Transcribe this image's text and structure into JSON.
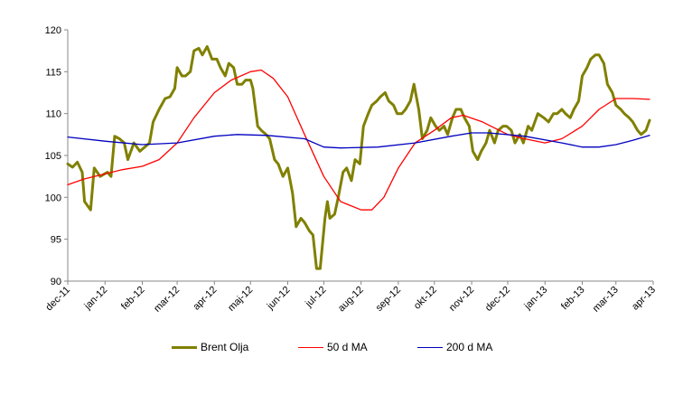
{
  "chart_data": {
    "type": "line",
    "title": "",
    "xlabel": "",
    "ylabel": "",
    "ylim": [
      90,
      120
    ],
    "yticks": [
      90,
      95,
      100,
      105,
      110,
      115,
      120
    ],
    "xlim": [
      "2011-12-01",
      "2013-04-01"
    ],
    "grid": false,
    "legend_position": "bottom",
    "x_tick_labels": [
      "dec-11",
      "jan-12",
      "feb-12",
      "mar-12",
      "apr-12",
      "maj-12",
      "jun-12",
      "jul-12",
      "aug-12",
      "sep-12",
      "okt-12",
      "nov-12",
      "dec-12",
      "jan-13",
      "feb-13",
      "mar-13",
      "apr-13"
    ],
    "series": [
      {
        "name": "Brent Olja",
        "color": "#808000",
        "points": [
          [
            "2011-12-01",
            104.0
          ],
          [
            "2011-12-05",
            103.6
          ],
          [
            "2011-12-09",
            104.2
          ],
          [
            "2011-12-13",
            103.0
          ],
          [
            "2011-12-15",
            99.5
          ],
          [
            "2011-12-20",
            98.5
          ],
          [
            "2011-12-23",
            103.5
          ],
          [
            "2011-12-28",
            102.5
          ],
          [
            "2012-01-03",
            103.0
          ],
          [
            "2012-01-06",
            102.5
          ],
          [
            "2012-01-09",
            107.3
          ],
          [
            "2012-01-13",
            107.0
          ],
          [
            "2012-01-17",
            106.5
          ],
          [
            "2012-01-20",
            104.5
          ],
          [
            "2012-01-25",
            106.5
          ],
          [
            "2012-01-30",
            105.5
          ],
          [
            "2012-02-03",
            106.0
          ],
          [
            "2012-02-07",
            106.5
          ],
          [
            "2012-02-10",
            109.0
          ],
          [
            "2012-02-15",
            110.5
          ],
          [
            "2012-02-20",
            111.8
          ],
          [
            "2012-02-24",
            112.0
          ],
          [
            "2012-02-28",
            113.0
          ],
          [
            "2012-03-01",
            115.5
          ],
          [
            "2012-03-05",
            114.5
          ],
          [
            "2012-03-08",
            114.5
          ],
          [
            "2012-03-12",
            115.0
          ],
          [
            "2012-03-15",
            117.5
          ],
          [
            "2012-03-19",
            117.8
          ],
          [
            "2012-03-22",
            117.0
          ],
          [
            "2012-03-26",
            118.0
          ],
          [
            "2012-03-30",
            116.5
          ],
          [
            "2012-04-03",
            116.5
          ],
          [
            "2012-04-06",
            115.5
          ],
          [
            "2012-04-10",
            114.5
          ],
          [
            "2012-04-13",
            116.0
          ],
          [
            "2012-04-17",
            115.5
          ],
          [
            "2012-04-20",
            113.5
          ],
          [
            "2012-04-24",
            113.5
          ],
          [
            "2012-04-27",
            114.0
          ],
          [
            "2012-05-01",
            114.0
          ],
          [
            "2012-05-03",
            113.0
          ],
          [
            "2012-05-07",
            108.5
          ],
          [
            "2012-05-10",
            108.0
          ],
          [
            "2012-05-14",
            107.5
          ],
          [
            "2012-05-17",
            107.0
          ],
          [
            "2012-05-21",
            104.5
          ],
          [
            "2012-05-24",
            104.0
          ],
          [
            "2012-05-28",
            102.5
          ],
          [
            "2012-06-01",
            103.5
          ],
          [
            "2012-06-05",
            100.5
          ],
          [
            "2012-06-08",
            96.5
          ],
          [
            "2012-06-12",
            97.5
          ],
          [
            "2012-06-15",
            97.0
          ],
          [
            "2012-06-19",
            96.0
          ],
          [
            "2012-06-22",
            95.5
          ],
          [
            "2012-06-25",
            91.5
          ],
          [
            "2012-06-28",
            91.5
          ],
          [
            "2012-07-02",
            97.5
          ],
          [
            "2012-07-04",
            99.5
          ],
          [
            "2012-07-06",
            97.5
          ],
          [
            "2012-07-10",
            98.0
          ],
          [
            "2012-07-13",
            100.0
          ],
          [
            "2012-07-17",
            103.0
          ],
          [
            "2012-07-20",
            103.5
          ],
          [
            "2012-07-24",
            102.0
          ],
          [
            "2012-07-27",
            104.5
          ],
          [
            "2012-07-31",
            104.0
          ],
          [
            "2012-08-03",
            108.5
          ],
          [
            "2012-08-07",
            110.0
          ],
          [
            "2012-08-10",
            111.0
          ],
          [
            "2012-08-14",
            111.5
          ],
          [
            "2012-08-17",
            112.0
          ],
          [
            "2012-08-21",
            112.5
          ],
          [
            "2012-08-24",
            111.5
          ],
          [
            "2012-08-28",
            111.0
          ],
          [
            "2012-08-31",
            110.0
          ],
          [
            "2012-09-04",
            110.0
          ],
          [
            "2012-09-07",
            110.5
          ],
          [
            "2012-09-11",
            111.5
          ],
          [
            "2012-09-14",
            113.5
          ],
          [
            "2012-09-18",
            110.5
          ],
          [
            "2012-09-21",
            107.0
          ],
          [
            "2012-09-25",
            108.0
          ],
          [
            "2012-09-28",
            109.5
          ],
          [
            "2012-10-02",
            108.5
          ],
          [
            "2012-10-05",
            108.0
          ],
          [
            "2012-10-09",
            108.5
          ],
          [
            "2012-10-12",
            107.5
          ],
          [
            "2012-10-16",
            109.5
          ],
          [
            "2012-10-19",
            110.5
          ],
          [
            "2012-10-23",
            110.5
          ],
          [
            "2012-10-26",
            109.5
          ],
          [
            "2012-10-30",
            108.5
          ],
          [
            "2012-11-02",
            105.5
          ],
          [
            "2012-11-06",
            104.5
          ],
          [
            "2012-11-09",
            105.5
          ],
          [
            "2012-11-13",
            106.5
          ],
          [
            "2012-11-16",
            108.0
          ],
          [
            "2012-11-20",
            106.5
          ],
          [
            "2012-11-23",
            108.0
          ],
          [
            "2012-11-27",
            108.5
          ],
          [
            "2012-11-30",
            108.5
          ],
          [
            "2012-12-04",
            108.0
          ],
          [
            "2012-12-07",
            106.5
          ],
          [
            "2012-12-11",
            107.5
          ],
          [
            "2012-12-14",
            106.5
          ],
          [
            "2012-12-18",
            108.5
          ],
          [
            "2012-12-21",
            108.0
          ],
          [
            "2012-12-26",
            110.0
          ],
          [
            "2012-12-31",
            109.5
          ],
          [
            "2013-01-04",
            109.0
          ],
          [
            "2013-01-08",
            110.0
          ],
          [
            "2013-01-11",
            110.0
          ],
          [
            "2013-01-15",
            110.5
          ],
          [
            "2013-01-18",
            110.0
          ],
          [
            "2013-01-22",
            109.5
          ],
          [
            "2013-01-25",
            110.5
          ],
          [
            "2013-01-29",
            111.5
          ],
          [
            "2013-02-01",
            114.5
          ],
          [
            "2013-02-05",
            115.5
          ],
          [
            "2013-02-08",
            116.5
          ],
          [
            "2013-02-12",
            117.0
          ],
          [
            "2013-02-15",
            117.0
          ],
          [
            "2013-02-19",
            116.0
          ],
          [
            "2013-02-22",
            113.5
          ],
          [
            "2013-02-26",
            112.5
          ],
          [
            "2013-03-01",
            111.0
          ],
          [
            "2013-03-05",
            110.5
          ],
          [
            "2013-03-08",
            110.0
          ],
          [
            "2013-03-12",
            109.5
          ],
          [
            "2013-03-15",
            109.0
          ],
          [
            "2013-03-19",
            108.0
          ],
          [
            "2013-03-22",
            107.5
          ],
          [
            "2013-03-26",
            108.0
          ],
          [
            "2013-03-29",
            109.2
          ]
        ]
      },
      {
        "name": "50 d MA",
        "color": "#ff0000",
        "points": [
          [
            "2011-12-01",
            101.5
          ],
          [
            "2011-12-15",
            102.2
          ],
          [
            "2012-01-01",
            102.8
          ],
          [
            "2012-01-15",
            103.3
          ],
          [
            "2012-02-01",
            103.7
          ],
          [
            "2012-02-15",
            104.5
          ],
          [
            "2012-03-01",
            106.5
          ],
          [
            "2012-03-15",
            109.5
          ],
          [
            "2012-04-01",
            112.5
          ],
          [
            "2012-04-15",
            114.0
          ],
          [
            "2012-05-01",
            115.0
          ],
          [
            "2012-05-10",
            115.2
          ],
          [
            "2012-05-20",
            114.2
          ],
          [
            "2012-06-01",
            112.0
          ],
          [
            "2012-06-15",
            107.5
          ],
          [
            "2012-07-01",
            102.5
          ],
          [
            "2012-07-15",
            99.5
          ],
          [
            "2012-08-01",
            98.5
          ],
          [
            "2012-08-10",
            98.5
          ],
          [
            "2012-08-20",
            100.0
          ],
          [
            "2012-09-01",
            103.5
          ],
          [
            "2012-09-15",
            106.5
          ],
          [
            "2012-10-01",
            108.0
          ],
          [
            "2012-10-15",
            109.5
          ],
          [
            "2012-10-25",
            109.8
          ],
          [
            "2012-11-10",
            109.0
          ],
          [
            "2012-12-01",
            107.5
          ],
          [
            "2012-12-15",
            107.0
          ],
          [
            "2013-01-01",
            106.5
          ],
          [
            "2013-01-15",
            107.0
          ],
          [
            "2013-02-01",
            108.5
          ],
          [
            "2013-02-15",
            110.5
          ],
          [
            "2013-03-01",
            111.8
          ],
          [
            "2013-03-15",
            111.8
          ],
          [
            "2013-03-29",
            111.7
          ]
        ]
      },
      {
        "name": "200 d MA",
        "color": "#0000c0",
        "points": [
          [
            "2011-12-01",
            107.2
          ],
          [
            "2012-01-01",
            106.7
          ],
          [
            "2012-02-01",
            106.3
          ],
          [
            "2012-03-01",
            106.5
          ],
          [
            "2012-04-01",
            107.3
          ],
          [
            "2012-04-20",
            107.5
          ],
          [
            "2012-05-15",
            107.4
          ],
          [
            "2012-06-15",
            107.0
          ],
          [
            "2012-07-01",
            106.0
          ],
          [
            "2012-07-15",
            105.9
          ],
          [
            "2012-08-15",
            106.0
          ],
          [
            "2012-09-15",
            106.5
          ],
          [
            "2012-10-15",
            107.3
          ],
          [
            "2012-11-01",
            107.7
          ],
          [
            "2012-11-15",
            107.7
          ],
          [
            "2012-12-15",
            107.3
          ],
          [
            "2013-01-15",
            106.5
          ],
          [
            "2013-02-01",
            106.0
          ],
          [
            "2013-02-15",
            106.0
          ],
          [
            "2013-03-01",
            106.3
          ],
          [
            "2013-03-15",
            106.8
          ],
          [
            "2013-03-29",
            107.4
          ]
        ]
      }
    ]
  }
}
